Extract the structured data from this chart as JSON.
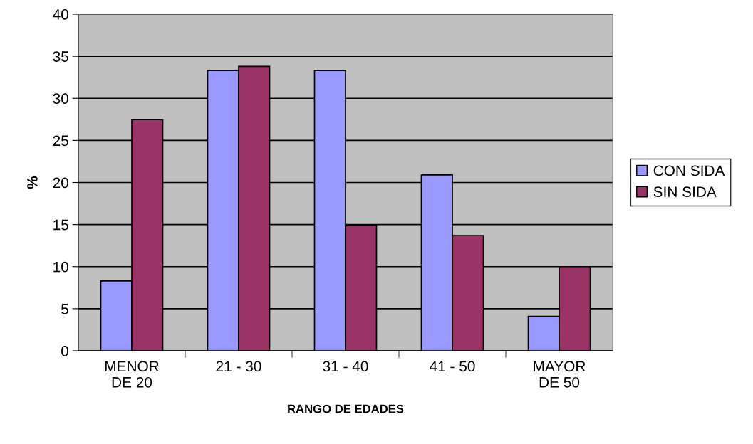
{
  "chart_data": {
    "type": "bar",
    "xlabel": "RANGO DE EDADES",
    "ylabel": "%",
    "categories": [
      "MENOR\nDE 20",
      "21 - 30",
      "31 - 40",
      "41 - 50",
      "MAYOR\nDE 50"
    ],
    "series": [
      {
        "name": "CON SIDA",
        "color": "#9999ff",
        "values": [
          8.3,
          33.3,
          33.3,
          20.9,
          4.1
        ]
      },
      {
        "name": "SIN SIDA",
        "color": "#993366",
        "values": [
          27.5,
          33.8,
          14.9,
          13.7,
          10
        ]
      }
    ],
    "ylim": [
      0,
      40
    ],
    "yticks": [
      0,
      5,
      10,
      15,
      20,
      25,
      30,
      35,
      40
    ],
    "grid": "y",
    "legend": "right"
  }
}
